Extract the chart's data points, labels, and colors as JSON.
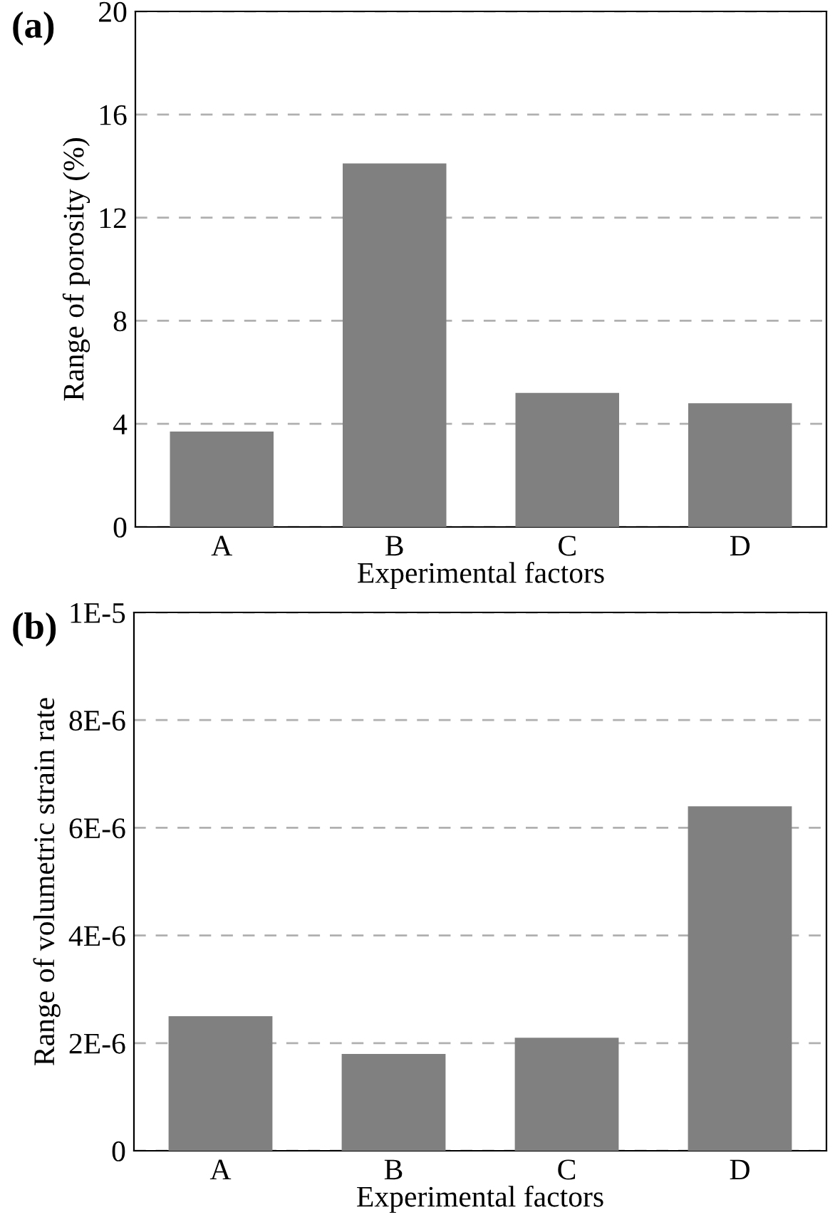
{
  "chart_data": [
    {
      "type": "bar",
      "annotations": [
        "(a)"
      ],
      "xlabel": "Experimental factors",
      "ylabel": "Range of porosity (%)",
      "categories": [
        "A",
        "B",
        "C",
        "D"
      ],
      "values": [
        3.7,
        14.1,
        5.2,
        4.8
      ],
      "color": "#808080",
      "ylim": [
        0,
        20
      ],
      "yticks": [
        0,
        4,
        8,
        12,
        16,
        20
      ],
      "grid": "y"
    },
    {
      "type": "bar",
      "annotations": [
        "(b)"
      ],
      "xlabel": "Experimental factors",
      "ylabel": "Range of volumetric strain rate",
      "categories": [
        "A",
        "B",
        "C",
        "D"
      ],
      "values": [
        2.5e-06,
        1.8e-06,
        2.1e-06,
        6.4e-06
      ],
      "color": "#808080",
      "ylim": [
        0,
        1e-05
      ],
      "yticks": [
        0,
        {
          "value": 2e-06,
          "label": "2E-6"
        },
        {
          "value": 4e-06,
          "label": "4E-6"
        },
        {
          "value": 6e-06,
          "label": "6E-6"
        },
        {
          "value": 8e-06,
          "label": "8E-6"
        },
        {
          "value": 1e-05,
          "label": "1E-5"
        }
      ],
      "grid": "y"
    }
  ]
}
